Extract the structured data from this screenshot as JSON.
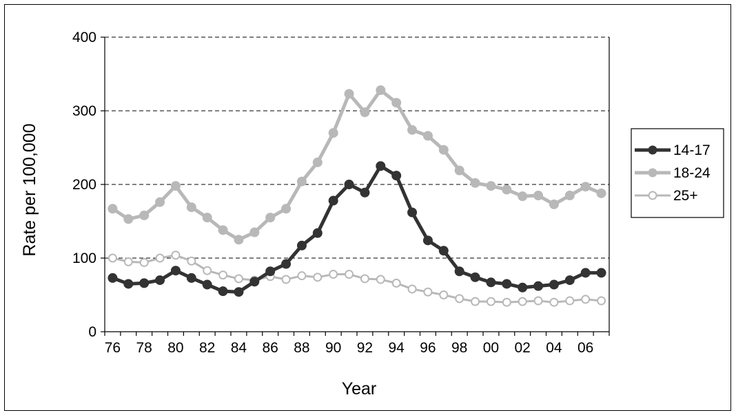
{
  "chart_data": {
    "type": "line",
    "title": "",
    "xlabel": "Year",
    "ylabel": "Rate per 100,000",
    "ylim": [
      0,
      400
    ],
    "yticks": [
      0,
      100,
      200,
      300,
      400
    ],
    "grid": "horizontal dashed",
    "legend_position": "right",
    "x": [
      "76",
      "77",
      "78",
      "79",
      "80",
      "81",
      "82",
      "83",
      "84",
      "85",
      "86",
      "87",
      "88",
      "89",
      "90",
      "91",
      "92",
      "93",
      "94",
      "95",
      "96",
      "97",
      "98",
      "99",
      "00",
      "01",
      "02",
      "03",
      "04",
      "05",
      "06",
      "07"
    ],
    "x_tick_labels": [
      "76",
      "78",
      "80",
      "82",
      "84",
      "86",
      "88",
      "90",
      "92",
      "94",
      "96",
      "98",
      "00",
      "02",
      "04",
      "06"
    ],
    "series": [
      {
        "name": "14-17",
        "color": "#333333",
        "marker": "filled-circle",
        "values": [
          73,
          65,
          66,
          70,
          83,
          73,
          64,
          55,
          54,
          68,
          82,
          92,
          117,
          134,
          178,
          200,
          189,
          225,
          212,
          162,
          124,
          110,
          82,
          74,
          67,
          65,
          60,
          62,
          64,
          70,
          80,
          80
        ]
      },
      {
        "name": "18-24",
        "color": "#b8b8b8",
        "marker": "filled-circle",
        "values": [
          167,
          153,
          158,
          176,
          198,
          169,
          155,
          138,
          125,
          135,
          155,
          167,
          204,
          230,
          270,
          323,
          298,
          328,
          311,
          274,
          266,
          247,
          219,
          202,
          198,
          193,
          184,
          185,
          173,
          185,
          197,
          188
        ]
      },
      {
        "name": "25+",
        "color": "#b8b8b8",
        "marker": "open-circle",
        "values": [
          100,
          95,
          94,
          100,
          104,
          96,
          83,
          77,
          72,
          70,
          75,
          71,
          76,
          74,
          78,
          78,
          72,
          71,
          66,
          58,
          54,
          50,
          45,
          41,
          41,
          40,
          41,
          42,
          40,
          42,
          44,
          42
        ]
      }
    ]
  }
}
